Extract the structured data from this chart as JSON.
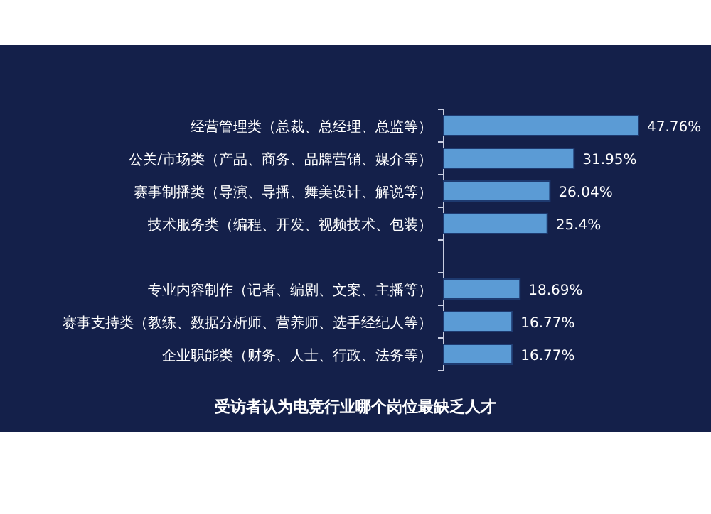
{
  "chart_data": {
    "type": "bar",
    "orientation": "horizontal",
    "title": "受访者认为电竞行业哪个岗位最缺乏人才",
    "categories": [
      "经营管理类（总裁、总经理、总监等）",
      "公关/市场类（产品、商务、品牌营销、媒介等）",
      "赛事制播类（导演、导播、舞美设计、解说等）",
      "技术服务类（编程、开发、视频技术、包装）",
      null,
      "专业内容制作（记者、编剧、文案、主播等）",
      "赛事支持类（教练、数据分析师、营养师、选手经纪人等）",
      "企业职能类（财务、人士、行政、法务等）"
    ],
    "values": [
      47.76,
      31.95,
      26.04,
      25.4,
      null,
      18.69,
      16.77,
      16.77
    ],
    "value_labels": [
      "47.76%",
      "31.95%",
      "26.04%",
      "25.4%",
      null,
      "18.69%",
      "16.77%",
      "16.77%"
    ],
    "color": "#5b9bd5"
  }
}
